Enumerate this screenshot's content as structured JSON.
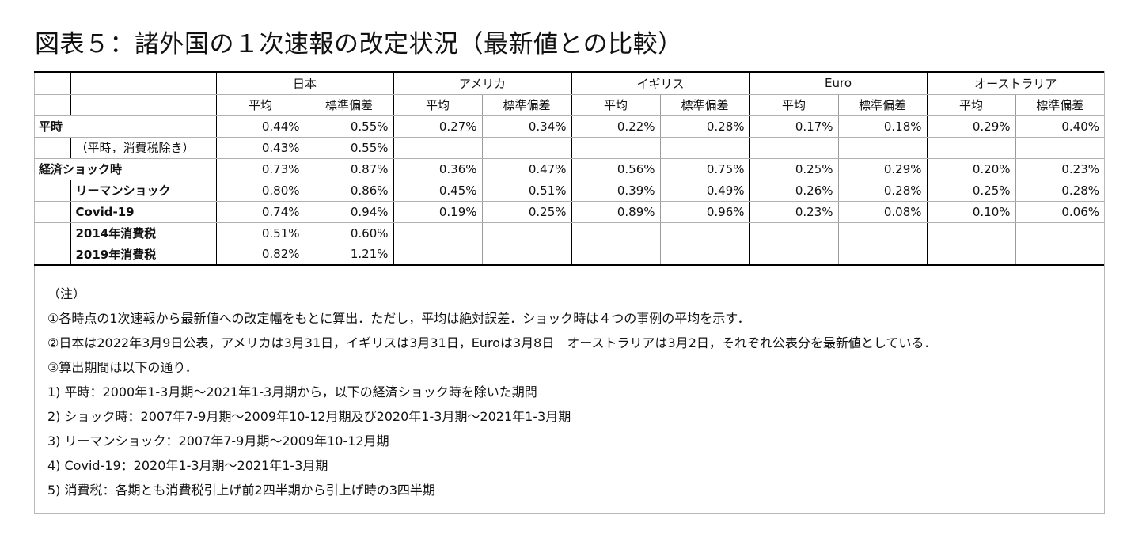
{
  "title": "図表５：諸外国の１次速報の改定状況（最新値との比較）",
  "table": {
    "groups": [
      "日本",
      "アメリカ",
      "イギリス",
      "Euro",
      "オーストラリア"
    ],
    "subheaders": [
      "平均",
      "標準偏差"
    ],
    "rows": [
      {
        "label": "平時",
        "sub": "",
        "values": [
          "0.44%",
          "0.55%",
          "0.27%",
          "0.34%",
          "0.22%",
          "0.28%",
          "0.17%",
          "0.18%",
          "0.29%",
          "0.40%"
        ]
      },
      {
        "label": "",
        "sub": "（平時，消費税除き）",
        "values": [
          "0.43%",
          "0.55%",
          "",
          "",
          "",
          "",
          "",
          "",
          "",
          ""
        ]
      },
      {
        "label": "経済ショック時",
        "sub": "",
        "values": [
          "0.73%",
          "0.87%",
          "0.36%",
          "0.47%",
          "0.56%",
          "0.75%",
          "0.25%",
          "0.29%",
          "0.20%",
          "0.23%"
        ]
      },
      {
        "label": "",
        "sub": "リーマンショック",
        "values": [
          "0.80%",
          "0.86%",
          "0.45%",
          "0.51%",
          "0.39%",
          "0.49%",
          "0.26%",
          "0.28%",
          "0.25%",
          "0.28%"
        ]
      },
      {
        "label": "",
        "sub": "Covid-19",
        "values": [
          "0.74%",
          "0.94%",
          "0.19%",
          "0.25%",
          "0.89%",
          "0.96%",
          "0.23%",
          "0.08%",
          "0.10%",
          "0.06%"
        ]
      },
      {
        "label": "",
        "sub": "2014年消費税",
        "values": [
          "0.51%",
          "0.60%",
          "",
          "",
          "",
          "",
          "",
          "",
          "",
          ""
        ]
      },
      {
        "label": "",
        "sub": "2019年消費税",
        "values": [
          "0.82%",
          "1.21%",
          "",
          "",
          "",
          "",
          "",
          "",
          "",
          ""
        ]
      }
    ]
  },
  "notes": [
    "（注）",
    "①各時点の1次速報から最新値への改定幅をもとに算出．ただし，平均は絶対誤差．ショック時は４つの事例の平均を示す．",
    "②日本は2022年3月9日公表，アメリカは3月31日，イギリスは3月31日，Euroは3月8日　オーストラリアは3月2日，それぞれ公表分を最新値としている．",
    "③算出期間は以下の通り．",
    "1) 平時：2000年1-3月期～2021年1-3月期から，以下の経済ショック時を除いた期間",
    "2) ショック時：2007年7-9月期～2009年10-12月期及び2020年1-3月期～2021年1-3月期",
    "3) リーマンショック：2007年7-9月期～2009年10-12月期",
    "4) Covid-19：2020年1-3月期～2021年1-3月期",
    "5) 消費税：各期とも消費税引上げ前2四半期から引上げ時の3四半期"
  ]
}
